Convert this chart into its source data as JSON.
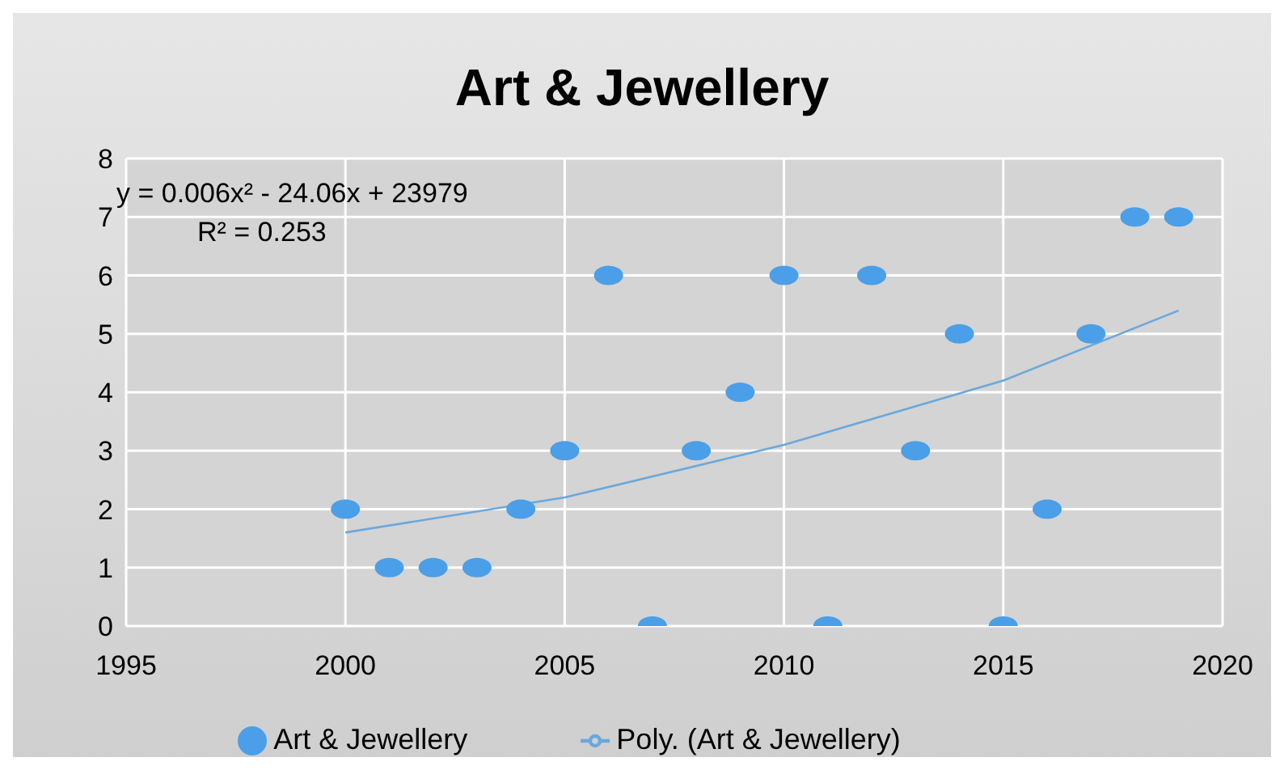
{
  "chart_data": {
    "type": "scatter",
    "title": "Art & Jewellery",
    "x": [
      2000,
      2001,
      2002,
      2003,
      2004,
      2005,
      2006,
      2007,
      2008,
      2009,
      2010,
      2011,
      2012,
      2013,
      2014,
      2015,
      2016,
      2017,
      2018,
      2019
    ],
    "series": [
      {
        "name": "Art & Jewellery",
        "color": "#4a9fe8",
        "marker": "circle",
        "values": [
          2,
          1,
          1,
          1,
          2,
          3,
          6,
          0,
          3,
          4,
          6,
          0,
          6,
          3,
          5,
          0,
          2,
          5,
          7,
          7
        ]
      },
      {
        "name": "Poly. (Art & Jewellery)",
        "type": "line",
        "color": "#6aa8dc",
        "x": [
          2000,
          2005,
          2010,
          2015,
          2019
        ],
        "values": [
          1.6,
          2.2,
          3.1,
          4.2,
          5.4
        ],
        "line_style": "solid"
      }
    ],
    "annotations": [
      "y = 0.006x² - 24.06x + 23979",
      "R² = 0.253"
    ],
    "xlim": [
      1995,
      2020
    ],
    "xticks": [
      1995,
      2000,
      2005,
      2010,
      2015,
      2020
    ],
    "ylim": [
      0,
      8
    ],
    "yticks": [
      0,
      1,
      2,
      3,
      4,
      5,
      6,
      7,
      8
    ],
    "grid": true,
    "legend": "bottom"
  }
}
